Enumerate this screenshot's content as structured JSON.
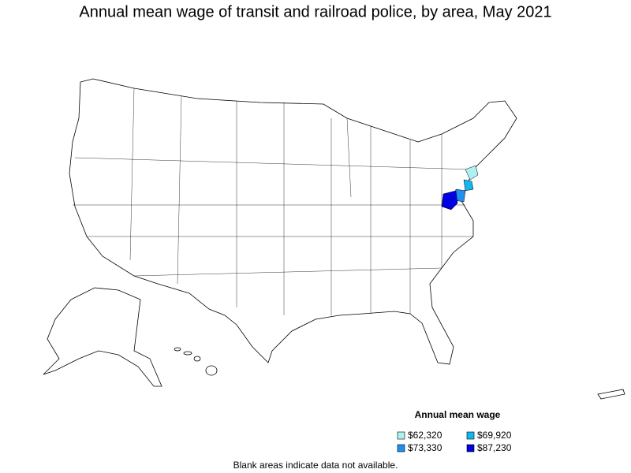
{
  "title": "Annual mean wage of transit and railroad police, by area, May 2021",
  "legend": {
    "title": "Annual mean wage",
    "items": [
      {
        "label": "$62,320",
        "color": "#b0f0f0"
      },
      {
        "label": "$69,920",
        "color": "#10b8f0"
      },
      {
        "label": "$73,330",
        "color": "#2090f0"
      },
      {
        "label": "$87,230",
        "color": "#0000e0"
      }
    ]
  },
  "note": "Blank areas indicate data not available."
}
